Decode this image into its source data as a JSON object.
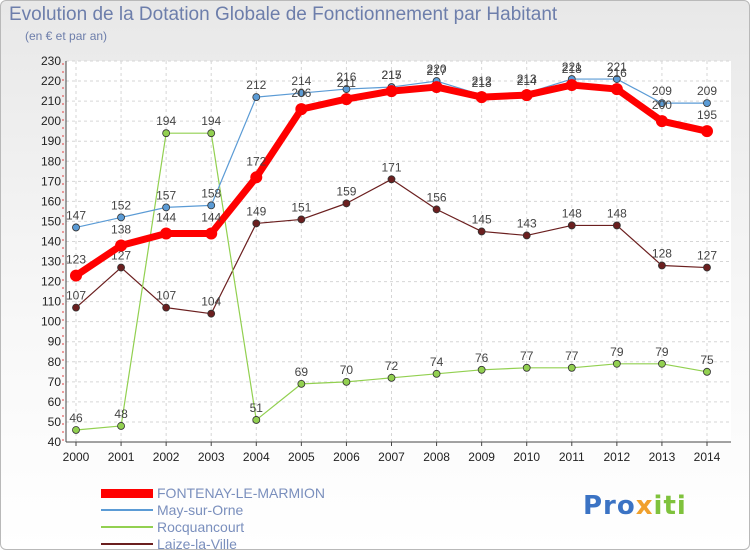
{
  "title": "Evolution de la Dotation Globale de Fonctionnement par Habitant",
  "subtitle": "(en € et par an)",
  "logo": {
    "part1": "Pro",
    "part2": "x",
    "part3": "iti"
  },
  "chart_data": {
    "type": "line",
    "title": "Evolution de la Dotation Globale de Fonctionnement par Habitant",
    "subtitle": "(en € et par an)",
    "xlabel": "",
    "ylabel": "",
    "x": [
      "2000",
      "2001",
      "2002",
      "2003",
      "2004",
      "2005",
      "2006",
      "2007",
      "2008",
      "2009",
      "2010",
      "2011",
      "2012",
      "2013",
      "2014"
    ],
    "ylim": [
      40,
      230
    ],
    "yticks": [
      40,
      50,
      60,
      70,
      80,
      90,
      100,
      110,
      120,
      130,
      140,
      150,
      160,
      170,
      180,
      190,
      200,
      210,
      220,
      230
    ],
    "grid": true,
    "legend_position": "bottom-left",
    "series": [
      {
        "name": "FONTENAY-LE-MARMION",
        "color": "#ff0000",
        "values": [
          123,
          138,
          144,
          144,
          172,
          206,
          211,
          215,
          217,
          212,
          213,
          218,
          216,
          200,
          195
        ]
      },
      {
        "name": "May-sur-Orne",
        "color": "#5b9bd5",
        "values": [
          147,
          152,
          157,
          158,
          212,
          214,
          216,
          217,
          220,
          213,
          214,
          221,
          221,
          209,
          209
        ]
      },
      {
        "name": "Rocquancourt",
        "color": "#92d050",
        "values": [
          46,
          48,
          194,
          194,
          51,
          69,
          70,
          72,
          74,
          76,
          77,
          77,
          79,
          79,
          75
        ]
      },
      {
        "name": "Laize-la-Ville",
        "color": "#6b1f1f",
        "values": [
          107,
          127,
          107,
          104,
          149,
          151,
          159,
          171,
          156,
          145,
          143,
          148,
          148,
          128,
          127
        ]
      }
    ]
  }
}
